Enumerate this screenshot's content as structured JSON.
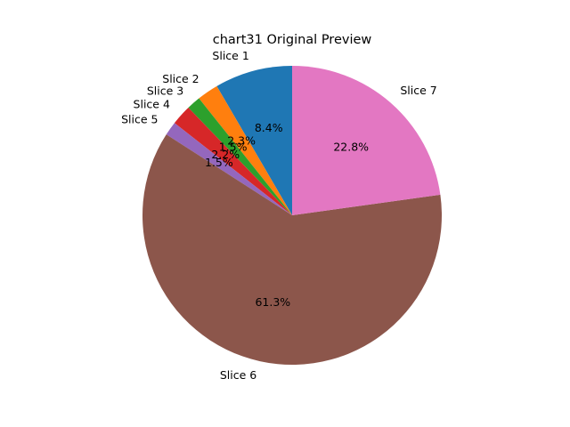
{
  "chart_data": {
    "type": "pie",
    "title": "chart31 Original Preview",
    "start_angle_deg": 90,
    "direction": "counterclockwise",
    "slices": [
      {
        "label": "Slice 1",
        "value": 8.4,
        "pct_label": "8.4%",
        "color": "#1f77b4"
      },
      {
        "label": "Slice 2",
        "value": 2.3,
        "pct_label": "2.3%",
        "color": "#ff7f0e"
      },
      {
        "label": "Slice 3",
        "value": 1.5,
        "pct_label": "1.5%",
        "color": "#2ca02c"
      },
      {
        "label": "Slice 4",
        "value": 2.2,
        "pct_label": "2.2%",
        "color": "#d62728"
      },
      {
        "label": "Slice 5",
        "value": 1.5,
        "pct_label": "1.5%",
        "color": "#9467bd"
      },
      {
        "label": "Slice 6",
        "value": 61.3,
        "pct_label": "61.3%",
        "color": "#8c564b"
      },
      {
        "label": "Slice 7",
        "value": 22.8,
        "pct_label": "22.8%",
        "color": "#e377c2"
      }
    ]
  }
}
